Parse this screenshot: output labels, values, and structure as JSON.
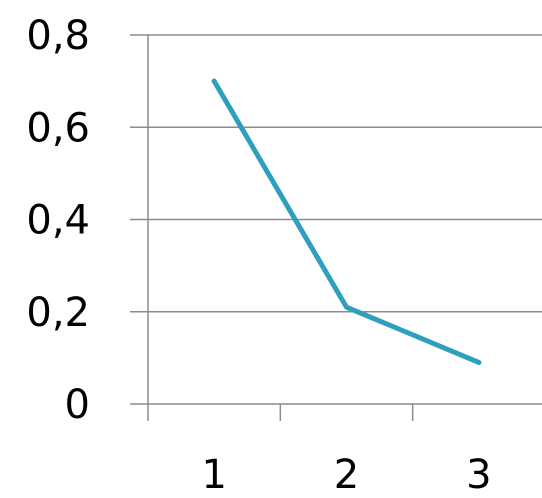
{
  "chart_data": {
    "type": "line",
    "categories": [
      "1",
      "2",
      "3"
    ],
    "series": [
      {
        "values": [
          0.7,
          0.21,
          0.09
        ],
        "color": "#2e9fbd"
      }
    ],
    "ylim": [
      0,
      0.8
    ],
    "yticks": [
      "0",
      "0,2",
      "0,4",
      "0,6",
      "0,8"
    ],
    "title": "",
    "xlabel": "",
    "ylabel": "",
    "grid": "horizontal",
    "gridline_color": "#8c8c8c",
    "legend": "none"
  }
}
